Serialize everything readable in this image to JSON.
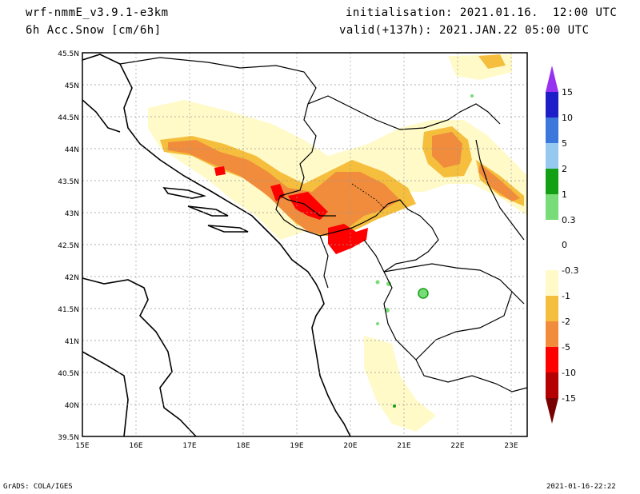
{
  "header": {
    "model": "wrf-nmmE_v3.9.1-e3km",
    "variable": "6h Acc.Snow [cm/6h]",
    "init": "initialisation: 2021.01.16.  12:00 UTC",
    "valid": "valid(+137h): 2021.JAN.22 05:00 UTC"
  },
  "map": {
    "lat_labels": [
      "45.5N",
      "45N",
      "44.5N",
      "44N",
      "43.5N",
      "43N",
      "42.5N",
      "42N",
      "41.5N",
      "41N",
      "40.5N",
      "40N",
      "39.5N"
    ],
    "lon_labels": [
      "15E",
      "16E",
      "17E",
      "18E",
      "19E",
      "20E",
      "21E",
      "22E",
      "23E"
    ],
    "extent": {
      "lon": [
        15,
        23.3
      ],
      "lat": [
        39.5,
        45.5
      ]
    }
  },
  "colorbar": {
    "labels": [
      "15",
      "10",
      "5",
      "2",
      "1",
      "0.3",
      "0",
      "-0.3",
      "-1",
      "-2",
      "-5",
      "-10",
      "-15"
    ],
    "colors": [
      "#1e1ec8",
      "#3c78dc",
      "#96c8f0",
      "#14a014",
      "#78dc78",
      "#ffffff",
      "#fffac8",
      "#f5be3c",
      "#f08c3c",
      "#ff0000",
      "#b40000"
    ],
    "top_arrow_color": "#9632f0",
    "bottom_arrow_color": "#780000"
  },
  "footer": {
    "credit": "GrADS: COLA/IGES",
    "timestamp": "2021-01-16-22:22"
  }
}
